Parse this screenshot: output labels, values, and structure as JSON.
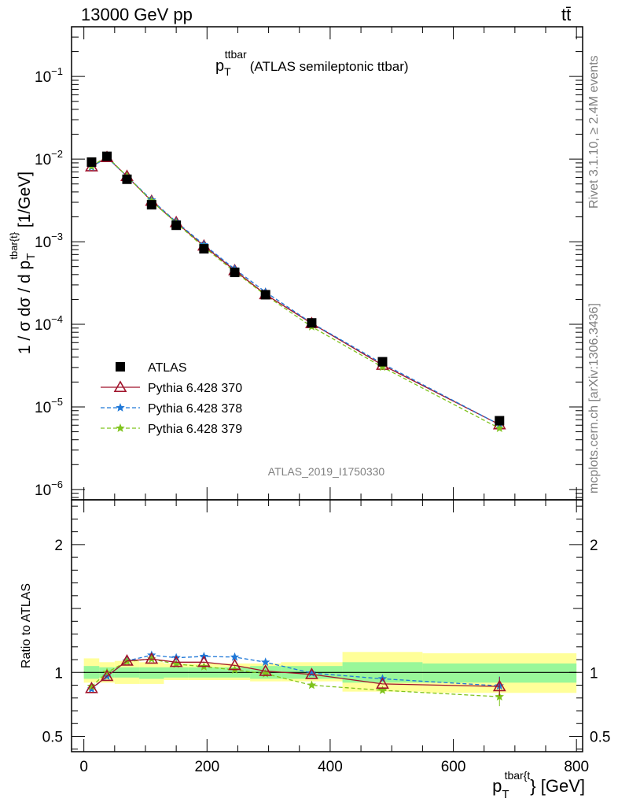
{
  "header": {
    "energy": "13000 GeV pp",
    "process": "tt̄",
    "rivet": "Rivet 3.1.10, ≥ 2.4M events",
    "mcplots": "mcplots.cern.ch [arXiv:1306.3436]",
    "analysis_id": "ATLAS_2019_I1750330"
  },
  "colors": {
    "data": "#000000",
    "py370": "#a0132b",
    "py378": "#1f78d8",
    "py379": "#7fc31c",
    "band_inner": "#99f799",
    "band_outer": "#ffff99",
    "side_text": "#808080"
  },
  "chart_data": [
    {
      "type": "scatter",
      "title_main": "p",
      "title_sub": "T",
      "title_sup": "ttbar",
      "title_rest": "(ATLAS semileptonic ttbar)",
      "ylabel": "1 / σ dσ / d p_T^{tbar{t}} [1/GeV]",
      "yscale": "log",
      "xlim": [
        -20,
        810
      ],
      "ylim": [
        7.5e-07,
        0.4
      ],
      "yticks": [
        {
          "value": 1e-06,
          "label": "10",
          "exp": "−6"
        },
        {
          "value": 1e-05,
          "label": "10",
          "exp": "−5"
        },
        {
          "value": 0.0001,
          "label": "10",
          "exp": "−4"
        },
        {
          "value": 0.001,
          "label": "10",
          "exp": "−3"
        },
        {
          "value": 0.01,
          "label": "10",
          "exp": "−2"
        },
        {
          "value": 0.1,
          "label": "10",
          "exp": "−1"
        }
      ],
      "legend_position": "middle-left",
      "x": [
        12.5,
        37.5,
        70,
        110,
        150,
        195,
        245,
        295,
        370,
        485,
        675
      ],
      "series": [
        {
          "name": "ATLAS",
          "key": "data",
          "marker": "square",
          "values": [
            0.0092,
            0.0108,
            0.0057,
            0.0028,
            0.00158,
            0.00082,
            0.000425,
            0.000228,
            0.000104,
            3.52e-05,
            6.8e-06
          ]
        },
        {
          "name": "Pythia 6.428 370",
          "key": "py370",
          "marker": "triangle-open",
          "line": "solid",
          "values": [
            0.0081,
            0.0105,
            0.0062,
            0.0031,
            0.00171,
            0.00089,
            0.000449,
            0.00023,
            0.0001026,
            3.21e-05,
            6.1e-06
          ]
        },
        {
          "name": "Pythia 6.428 378",
          "key": "py378",
          "marker": "star",
          "line": "dashed",
          "values": [
            0.008,
            0.0105,
            0.0062,
            0.0032,
            0.00174,
            0.00092,
            0.000467,
            0.000246,
            0.0001036,
            3.34e-05,
            6.1e-06
          ]
        },
        {
          "name": "Pythia 6.428 379",
          "key": "py379",
          "marker": "star",
          "line": "dashed",
          "values": [
            0.0082,
            0.0108,
            0.0062,
            0.0031,
            0.00168,
            0.00086,
            0.000434,
            0.000225,
            9.36e-05,
            3.03e-05,
            5.5e-06
          ]
        }
      ]
    },
    {
      "type": "line",
      "ylabel": "Ratio to ATLAS",
      "xlabel_main": "p",
      "xlabel_sub": "T",
      "xlabel_sup": "tbar{t",
      "xlabel_rest": "} [GeV]",
      "xlim": [
        -20,
        810
      ],
      "ylim": [
        0.38,
        2.35
      ],
      "xticks": [
        0,
        200,
        400,
        600,
        800
      ],
      "yticks": [
        0.5,
        1,
        2
      ],
      "reference_line": 1,
      "x": [
        12.5,
        37.5,
        70,
        110,
        150,
        195,
        245,
        295,
        370,
        485,
        675
      ],
      "bins": [
        [
          0,
          25
        ],
        [
          25,
          50
        ],
        [
          50,
          90
        ],
        [
          90,
          130
        ],
        [
          130,
          170
        ],
        [
          170,
          220
        ],
        [
          220,
          270
        ],
        [
          270,
          320
        ],
        [
          320,
          420
        ],
        [
          420,
          550
        ],
        [
          550,
          800
        ]
      ],
      "band_inner": [
        [
          0.95,
          1.05
        ],
        [
          0.96,
          1.04
        ],
        [
          0.96,
          1.04
        ],
        [
          0.95,
          1.04
        ],
        [
          0.96,
          1.04
        ],
        [
          0.96,
          1.04
        ],
        [
          0.96,
          1.04
        ],
        [
          0.95,
          1.05
        ],
        [
          0.95,
          1.05
        ],
        [
          0.92,
          1.08
        ],
        [
          0.92,
          1.07
        ]
      ],
      "band_outer": [
        [
          0.92,
          1.11
        ],
        [
          0.92,
          1.08
        ],
        [
          0.91,
          1.09
        ],
        [
          0.91,
          1.08
        ],
        [
          0.94,
          1.07
        ],
        [
          0.94,
          1.07
        ],
        [
          0.94,
          1.07
        ],
        [
          0.93,
          1.07
        ],
        [
          0.93,
          1.08
        ],
        [
          0.85,
          1.16
        ],
        [
          0.84,
          1.15
        ]
      ],
      "series": [
        {
          "name": "Pythia 6.428 370",
          "key": "py370",
          "marker": "triangle-open",
          "line": "solid",
          "values": [
            0.875,
            0.97,
            1.09,
            1.105,
            1.08,
            1.08,
            1.055,
            1.01,
            0.985,
            0.91,
            0.89
          ]
        },
        {
          "name": "Pythia 6.428 378",
          "key": "py378",
          "marker": "star",
          "line": "dashed",
          "values": [
            0.87,
            0.97,
            1.09,
            1.135,
            1.115,
            1.125,
            1.12,
            1.08,
            0.995,
            0.95,
            0.895
          ]
        },
        {
          "name": "Pythia 6.428 379",
          "key": "py379",
          "marker": "star",
          "line": "dashed",
          "values": [
            0.89,
            1.0,
            1.085,
            1.105,
            1.065,
            1.045,
            1.02,
            0.99,
            0.9,
            0.86,
            0.81
          ]
        }
      ]
    }
  ]
}
